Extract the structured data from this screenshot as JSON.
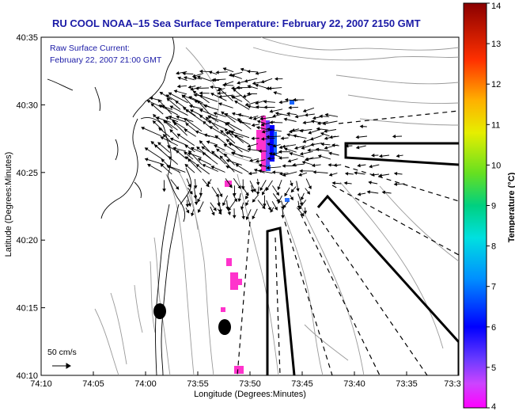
{
  "title": "RU COOL  NOAA–15  Sea Surface Temperature:  February 22, 2007 2150 GMT",
  "current_info": {
    "line1": "Raw Surface Current:",
    "line2": "February 22, 2007 21:00 GMT"
  },
  "scale_label": "50 cm/s",
  "colors": {
    "title": "#1a1aa6",
    "land_coast": "#000000",
    "bathymetry": "#9a9a9a",
    "vectors": "#000000",
    "sst_patch": "#ff33cc"
  },
  "chart_data": {
    "type": "map",
    "xlabel": "Longitude (Degrees:Minutes)",
    "ylabel": "Latitude (Degrees:Minutes)",
    "x_ticks": [
      "74:10",
      "74:05",
      "74:00",
      "73:55",
      "73:50",
      "73:45",
      "73:40",
      "73:35",
      "73:3"
    ],
    "y_ticks": [
      "40:35",
      "40:30",
      "40:25",
      "40:20",
      "40:15",
      "40:10"
    ],
    "xlim_deg": [
      -74.1667,
      -73.5
    ],
    "ylim_deg": [
      40.1667,
      40.5833
    ],
    "colorbar": {
      "label": "Temperature (°C)",
      "range": [
        4,
        14
      ],
      "ticks": [
        "14",
        "13",
        "12",
        "11",
        "10",
        "9",
        "8",
        "7",
        "6",
        "5",
        "4"
      ],
      "colormap": "jet-reversed"
    },
    "sst_patches_shown": [
      "nearshore-pixels",
      "offshore-band"
    ],
    "current_vectors": "dense field near Ambrose / Sandy Hook, sparse offshore"
  }
}
